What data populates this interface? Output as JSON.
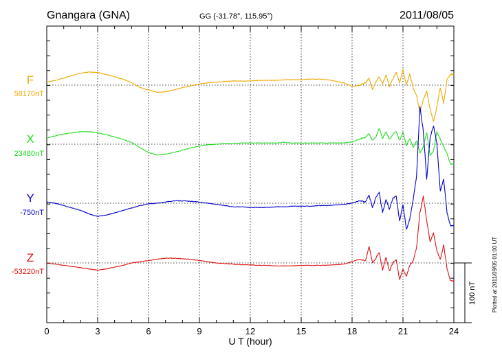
{
  "header": {
    "station": "Gnangara (GNA)",
    "coords": "GG (-31.78°, 115.95°)",
    "date": "2011/08/05"
  },
  "footer": {
    "plotted": "Plotted at 2011/09/05 01:00 UT"
  },
  "scale": {
    "label": "100 nT"
  },
  "chart_data": {
    "type": "line",
    "xlabel": "U T (hour)",
    "xlim": [
      0,
      24
    ],
    "xticks": [
      0,
      3,
      6,
      9,
      12,
      15,
      18,
      21,
      24
    ],
    "grid": true,
    "units": "nT",
    "series": [
      {
        "name": "F",
        "baseline_label": "58170nT",
        "baseline": 58170,
        "color": "#f0a800",
        "x": [
          0,
          0.5,
          1,
          1.5,
          2,
          2.5,
          3,
          3.5,
          4,
          4.5,
          5,
          5.5,
          6,
          6.5,
          7,
          7.5,
          8,
          8.5,
          9,
          9.5,
          10,
          10.5,
          11,
          11.5,
          12,
          12.5,
          13,
          13.5,
          14,
          14.5,
          15,
          15.5,
          16,
          16.5,
          17,
          17.5,
          18,
          18.4,
          18.8,
          19,
          19.2,
          19.4,
          19.6,
          19.8,
          20,
          20.2,
          20.4,
          20.6,
          20.8,
          21,
          21.2,
          21.4,
          21.6,
          21.8,
          22,
          22.2,
          22.4,
          22.6,
          22.8,
          23,
          23.2,
          23.4,
          23.6,
          23.8,
          24
        ],
        "values": [
          5,
          8,
          12,
          16,
          20,
          22,
          21,
          18,
          14,
          10,
          4,
          -4,
          -8,
          -12,
          -11,
          -8,
          -4,
          -1,
          2,
          4,
          5,
          6,
          7,
          7,
          7,
          8,
          8,
          8,
          9,
          9,
          9,
          10,
          10,
          9,
          7,
          4,
          -2,
          -1,
          4,
          12,
          -8,
          6,
          14,
          2,
          18,
          -2,
          10,
          22,
          4,
          26,
          0,
          18,
          -4,
          -18,
          -46,
          -24,
          -10,
          -40,
          -62,
          -36,
          -4,
          -30,
          10,
          18,
          18
        ]
      },
      {
        "name": "X",
        "baseline_label": "23480nT",
        "baseline": 23480,
        "color": "#22dd22",
        "x": [
          0,
          0.5,
          1,
          1.5,
          2,
          2.5,
          3,
          3.5,
          4,
          4.5,
          5,
          5.5,
          6,
          6.5,
          7,
          7.5,
          8,
          8.5,
          9,
          9.5,
          10,
          10.5,
          11,
          11.5,
          12,
          12.5,
          13,
          13.5,
          14,
          14.5,
          15,
          15.5,
          16,
          16.5,
          17,
          17.5,
          18,
          18.4,
          18.8,
          19,
          19.2,
          19.4,
          19.6,
          19.8,
          20,
          20.2,
          20.4,
          20.6,
          20.8,
          21,
          21.2,
          21.4,
          21.6,
          21.8,
          22,
          22.2,
          22.4,
          22.6,
          22.8,
          23,
          23.2,
          23.4,
          23.6,
          23.8,
          24
        ],
        "values": [
          10,
          14,
          17,
          19,
          21,
          21,
          19,
          16,
          12,
          8,
          3,
          -6,
          -14,
          -18,
          -17,
          -14,
          -10,
          -6,
          -3,
          -1,
          0,
          1,
          1,
          2,
          2,
          2,
          2,
          2,
          3,
          2,
          2,
          2,
          2,
          2,
          2,
          2,
          4,
          8,
          12,
          18,
          6,
          12,
          26,
          10,
          20,
          8,
          16,
          22,
          6,
          20,
          -2,
          10,
          -6,
          6,
          -14,
          -4,
          20,
          -18,
          -12,
          22,
          8,
          -4,
          -16,
          -34,
          -34
        ]
      },
      {
        "name": "Y",
        "baseline_label": "-750nT",
        "baseline": -750,
        "color": "#0000cc",
        "x": [
          0,
          0.5,
          1,
          1.5,
          2,
          2.5,
          3,
          3.5,
          4,
          4.5,
          5,
          5.5,
          6,
          6.5,
          7,
          7.5,
          8,
          8.5,
          9,
          9.5,
          10,
          10.5,
          11,
          11.5,
          12,
          12.5,
          13,
          13.5,
          14,
          14.5,
          15,
          15.5,
          16,
          16.5,
          17,
          17.5,
          18,
          18.4,
          18.8,
          19,
          19.2,
          19.4,
          19.6,
          19.8,
          20,
          20.2,
          20.4,
          20.6,
          20.8,
          21,
          21.2,
          21.4,
          21.6,
          21.8,
          22,
          22.2,
          22.4,
          22.6,
          22.8,
          23,
          23.2,
          23.4,
          23.6,
          23.8,
          24
        ],
        "values": [
          2,
          0,
          -4,
          -8,
          -12,
          -18,
          -22,
          -20,
          -16,
          -12,
          -8,
          -4,
          -1,
          0,
          2,
          4,
          4,
          3,
          2,
          0,
          -2,
          -4,
          -6,
          -6,
          -7,
          -7,
          -7,
          -6,
          -6,
          -5,
          -5,
          -5,
          -4,
          -4,
          -3,
          -2,
          0,
          4,
          2,
          14,
          -8,
          10,
          18,
          -16,
          6,
          -10,
          8,
          12,
          -30,
          -2,
          -44,
          -26,
          6,
          44,
          162,
          120,
          40,
          110,
          130,
          100,
          20,
          40,
          -16,
          -38,
          -38
        ]
      },
      {
        "name": "Z",
        "baseline_label": "-53220nT",
        "baseline": -53220,
        "color": "#dd1111",
        "x": [
          0,
          0.5,
          1,
          1.5,
          2,
          2.5,
          3,
          3.5,
          4,
          4.5,
          5,
          5.5,
          6,
          6.5,
          7,
          7.5,
          8,
          8.5,
          9,
          9.5,
          10,
          10.5,
          11,
          11.5,
          12,
          12.5,
          13,
          13.5,
          14,
          14.5,
          15,
          15.5,
          16,
          16.5,
          17,
          17.5,
          18,
          18.4,
          18.8,
          19,
          19.2,
          19.4,
          19.6,
          19.8,
          20,
          20.2,
          20.4,
          20.6,
          20.8,
          21,
          21.2,
          21.4,
          21.6,
          21.8,
          22,
          22.2,
          22.4,
          22.6,
          22.8,
          23,
          23.2,
          23.4,
          23.6,
          23.8,
          24
        ],
        "values": [
          0,
          -2,
          -4,
          -6,
          -8,
          -10,
          -12,
          -10,
          -7,
          -4,
          0,
          2,
          4,
          6,
          8,
          8,
          7,
          6,
          4,
          2,
          0,
          -1,
          -2,
          -3,
          -3,
          -4,
          -4,
          -5,
          -5,
          -5,
          -4,
          -4,
          -4,
          -4,
          -3,
          -2,
          2,
          6,
          4,
          28,
          0,
          8,
          18,
          -12,
          10,
          -14,
          0,
          6,
          -28,
          -10,
          -22,
          -4,
          4,
          26,
          84,
          112,
          70,
          36,
          50,
          20,
          6,
          30,
          -10,
          -30,
          -30
        ]
      }
    ]
  }
}
